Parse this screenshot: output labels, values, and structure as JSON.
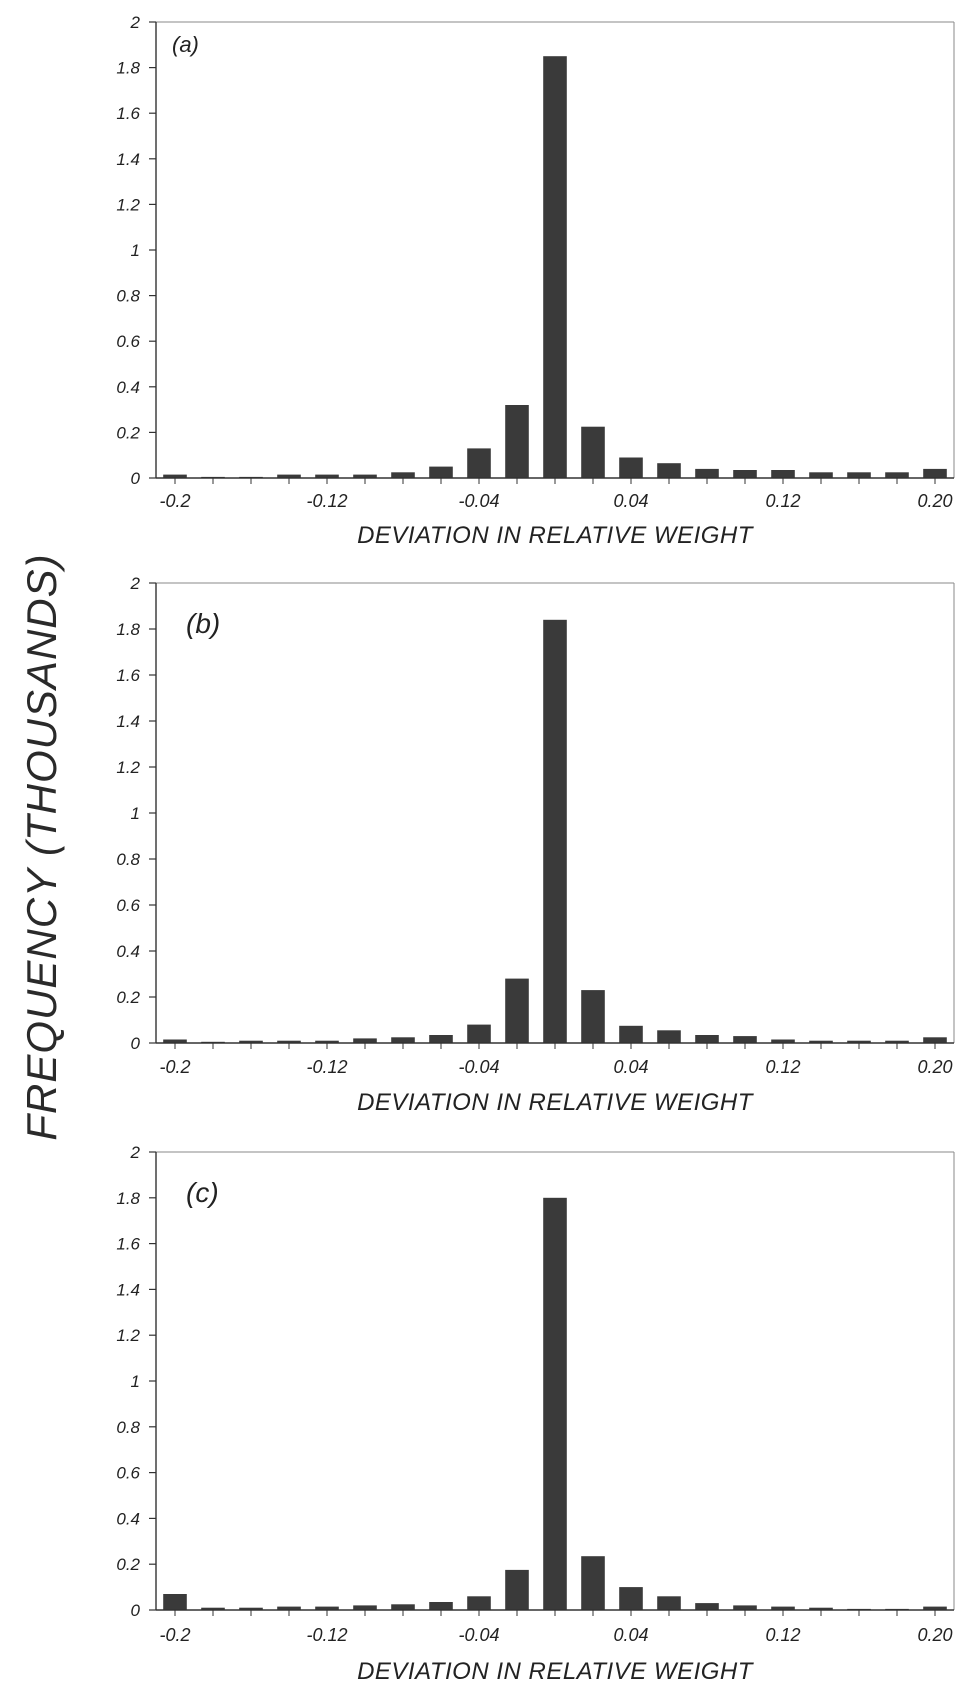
{
  "figure": {
    "shared_ylabel": "FREQUENCY (THOUSANDS)"
  },
  "chart_data": [
    {
      "type": "bar",
      "panel_label": "(a)",
      "xlabel": "DEVIATION IN RELATIVE WEIGHT",
      "ylabel": "FREQUENCY (THOUSANDS)",
      "ylim": [
        0,
        2
      ],
      "yticks": [
        "0",
        "0.2",
        "0.4",
        "0.6",
        "0.8",
        "1",
        "1.2",
        "1.4",
        "1.6",
        "1.8",
        "2"
      ],
      "xticks": [
        "-0.2",
        "-0.12",
        "-0.04",
        "0.04",
        "0.12",
        "0.20"
      ],
      "x": [
        -0.2,
        -0.18,
        -0.16,
        -0.14,
        -0.12,
        -0.1,
        -0.08,
        -0.06,
        -0.04,
        -0.02,
        0.0,
        0.02,
        0.04,
        0.06,
        0.08,
        0.1,
        0.12,
        0.14,
        0.16,
        0.18,
        0.2
      ],
      "values": [
        0.015,
        0.005,
        0.005,
        0.015,
        0.015,
        0.015,
        0.025,
        0.05,
        0.13,
        0.32,
        1.85,
        0.225,
        0.09,
        0.065,
        0.04,
        0.035,
        0.035,
        0.025,
        0.025,
        0.025,
        0.04
      ]
    },
    {
      "type": "bar",
      "panel_label": "(b)",
      "xlabel": "DEVIATION IN RELATIVE WEIGHT",
      "ylabel": "FREQUENCY (THOUSANDS)",
      "ylim": [
        0,
        2
      ],
      "yticks": [
        "0",
        "0.2",
        "0.4",
        "0.6",
        "0.8",
        "1",
        "1.2",
        "1.4",
        "1.6",
        "1.8",
        "2"
      ],
      "xticks": [
        "-0.2",
        "-0.12",
        "-0.04",
        "0.04",
        "0.12",
        "0.20"
      ],
      "x": [
        -0.2,
        -0.18,
        -0.16,
        -0.14,
        -0.12,
        -0.1,
        -0.08,
        -0.06,
        -0.04,
        -0.02,
        0.0,
        0.02,
        0.04,
        0.06,
        0.08,
        0.1,
        0.12,
        0.14,
        0.16,
        0.18,
        0.2
      ],
      "values": [
        0.015,
        0.005,
        0.01,
        0.01,
        0.01,
        0.02,
        0.025,
        0.035,
        0.08,
        0.28,
        1.84,
        0.23,
        0.075,
        0.055,
        0.035,
        0.03,
        0.015,
        0.01,
        0.01,
        0.01,
        0.025
      ]
    },
    {
      "type": "bar",
      "panel_label": "(c)",
      "xlabel": "DEVIATION IN RELATIVE WEIGHT",
      "ylabel": "FREQUENCY (THOUSANDS)",
      "ylim": [
        0,
        2
      ],
      "yticks": [
        "0",
        "0.2",
        "0.4",
        "0.6",
        "0.8",
        "1",
        "1.2",
        "1.4",
        "1.6",
        "1.8",
        "2"
      ],
      "xticks": [
        "-0.2",
        "-0.12",
        "-0.04",
        "0.04",
        "0.12",
        "0.20"
      ],
      "x": [
        -0.2,
        -0.18,
        -0.16,
        -0.14,
        -0.12,
        -0.1,
        -0.08,
        -0.06,
        -0.04,
        -0.02,
        0.0,
        0.02,
        0.04,
        0.06,
        0.08,
        0.1,
        0.12,
        0.14,
        0.16,
        0.18,
        0.2
      ],
      "values": [
        0.07,
        0.01,
        0.01,
        0.015,
        0.015,
        0.02,
        0.025,
        0.035,
        0.06,
        0.175,
        1.8,
        0.235,
        0.1,
        0.06,
        0.03,
        0.02,
        0.015,
        0.01,
        0.005,
        0.005,
        0.015
      ]
    }
  ],
  "colors": {
    "bar": "#3a3a3a",
    "axis": "#333333",
    "frame": "#8a8a8a"
  }
}
